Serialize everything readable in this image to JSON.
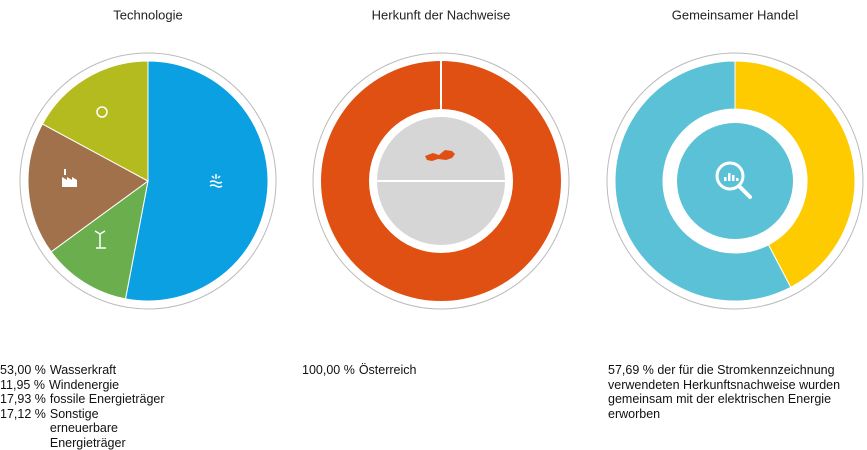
{
  "chart_data": [
    {
      "type": "pie",
      "title": "Technologie",
      "categories": [
        "Wasserkraft",
        "Windenergie",
        "fossile Energieträger",
        "Sonstige erneuerbare Energieträger"
      ],
      "values": [
        53.0,
        11.95,
        17.93,
        17.12
      ],
      "value_labels": [
        "53,00 %",
        "11,95 %",
        "17,93 %",
        "17,12 %"
      ],
      "colors": [
        "#0aa0e2",
        "#6aae4e",
        "#a0714a",
        "#b4bb1e"
      ]
    },
    {
      "type": "donut",
      "title": "Herkunft der Nachweise",
      "categories": [
        "Österreich"
      ],
      "values": [
        100.0
      ],
      "value_labels": [
        "100,00 %"
      ],
      "colors": [
        "#e05013"
      ]
    },
    {
      "type": "donut",
      "title": "Gemeinsamer Handel",
      "categories": [
        null,
        null
      ],
      "values": [
        42.31,
        57.69
      ],
      "value_labels": [
        null,
        "57,69 %"
      ],
      "description": "der für die Stromkennzeichnung verwendeten Herkunftsnachweise wurden gemeinsam mit der elektrischen Energie erworben",
      "colors": [
        "#fecb00",
        "#5bc1d7"
      ]
    }
  ]
}
